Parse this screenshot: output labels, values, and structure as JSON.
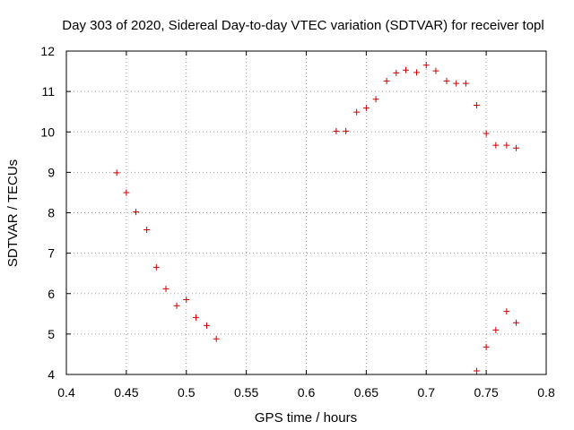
{
  "chart_data": {
    "type": "scatter",
    "title": "Day 303 of 2020, Sidereal Day-to-day VTEC variation (SDTVAR) for receiver topl",
    "xlabel": "GPS time / hours",
    "ylabel": "SDTVAR / TECUs",
    "xlim": [
      0.4,
      0.8
    ],
    "ylim": [
      4,
      12
    ],
    "xticks": [
      0.4,
      0.45,
      0.5,
      0.55,
      0.6,
      0.65,
      0.7,
      0.75,
      0.8
    ],
    "xtick_labels": [
      "0.4",
      "0.45",
      "0.5",
      "0.55",
      "0.6",
      "0.65",
      "0.7",
      "0.75",
      "0.8"
    ],
    "yticks": [
      4,
      5,
      6,
      7,
      8,
      9,
      10,
      11,
      12
    ],
    "ytick_labels": [
      "4",
      "5",
      "6",
      "7",
      "8",
      "9",
      "10",
      "11",
      "12"
    ],
    "grid": true,
    "marker": "+",
    "color": "#cc0000",
    "series": [
      {
        "name": "SDTVAR",
        "points": [
          [
            0.442,
            8.99
          ],
          [
            0.45,
            8.5
          ],
          [
            0.458,
            8.02
          ],
          [
            0.467,
            7.58
          ],
          [
            0.475,
            6.65
          ],
          [
            0.483,
            6.12
          ],
          [
            0.492,
            5.7
          ],
          [
            0.5,
            5.85
          ],
          [
            0.508,
            5.41
          ],
          [
            0.517,
            5.21
          ],
          [
            0.525,
            4.88
          ],
          [
            0.625,
            10.02
          ],
          [
            0.633,
            10.02
          ],
          [
            0.642,
            10.49
          ],
          [
            0.65,
            10.59
          ],
          [
            0.658,
            10.81
          ],
          [
            0.667,
            11.26
          ],
          [
            0.675,
            11.46
          ],
          [
            0.683,
            11.53
          ],
          [
            0.692,
            11.47
          ],
          [
            0.7,
            11.65
          ],
          [
            0.708,
            11.51
          ],
          [
            0.717,
            11.26
          ],
          [
            0.725,
            11.2
          ],
          [
            0.733,
            11.2
          ],
          [
            0.742,
            10.66
          ],
          [
            0.75,
            9.96
          ],
          [
            0.758,
            9.67
          ],
          [
            0.767,
            9.67
          ],
          [
            0.775,
            9.6
          ],
          [
            0.742,
            4.09
          ],
          [
            0.75,
            4.68
          ],
          [
            0.758,
            5.1
          ],
          [
            0.767,
            5.56
          ],
          [
            0.775,
            5.28
          ]
        ]
      }
    ]
  }
}
